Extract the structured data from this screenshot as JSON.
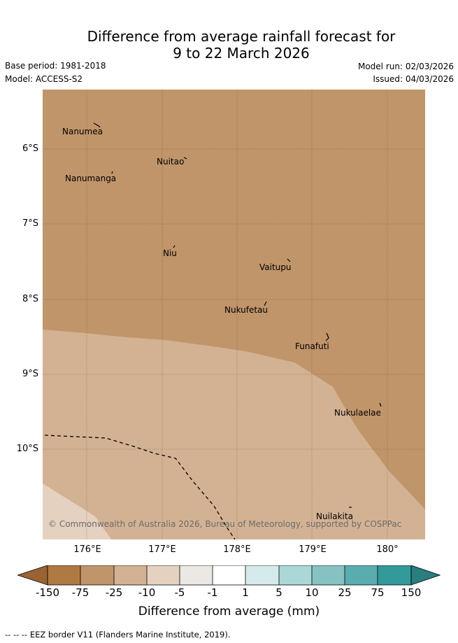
{
  "header": {
    "title_line1": "Difference from average rainfall forecast for",
    "title_line2": "9 to 22 March 2026",
    "base_period": "Base period: 1981-2018",
    "model": "Model: ACCESS-S2",
    "model_run": "Model run: 02/03/2026",
    "issued": "Issued: 04/03/2026"
  },
  "axes": {
    "lat_labels": [
      "6°S",
      "7°S",
      "8°S",
      "9°S",
      "10°S"
    ],
    "lon_labels": [
      "176°E",
      "177°E",
      "178°E",
      "179°E",
      "180°"
    ]
  },
  "places": [
    {
      "name": "Nanumea",
      "lon": 176.2,
      "lat": -5.7
    },
    {
      "name": "Nuitao",
      "lon": 177.3,
      "lat": -6.1
    },
    {
      "name": "Nanumanga",
      "lon": 176.35,
      "lat": -6.3
    },
    {
      "name": "Niu",
      "lon": 177.15,
      "lat": -7.3
    },
    {
      "name": "Vaitupu",
      "lon": 178.7,
      "lat": -7.5
    },
    {
      "name": "Nukufetau",
      "lon": 178.4,
      "lat": -8.0
    },
    {
      "name": "Funafuti",
      "lon": 179.2,
      "lat": -8.5
    },
    {
      "name": "Nukulaelae",
      "lon": 179.85,
      "lat": -9.4
    },
    {
      "name": "Nuilakita",
      "lon": 179.55,
      "lat": -10.8
    }
  ],
  "copyright": "© Commonwealth of Australia 2026, Bureau of Meteorology, supported by COSPPac",
  "colorbar": {
    "title": "Difference from average (mm)",
    "ticks": [
      "-150",
      "-75",
      "-25",
      "-10",
      "-5",
      "-1",
      "1",
      "5",
      "10",
      "25",
      "75",
      "150"
    ],
    "colors": [
      "#996332",
      "#b07941",
      "#c0956a",
      "#d3b293",
      "#e5d1bf",
      "#ece8e3",
      "#ffffff",
      "#d5eaea",
      "#acd7d7",
      "#86c2c2",
      "#5aadae",
      "#339a9b",
      "#2a7e7f"
    ]
  },
  "map_colors": {
    "drier_25": "#c0956a",
    "drier_10": "#d3b293",
    "drier_5": "#e5d1bf",
    "grid": "#6b4a2a"
  },
  "footnote": "-- -- -- EEZ border V11 (Flanders Marine Institute, 2019)."
}
